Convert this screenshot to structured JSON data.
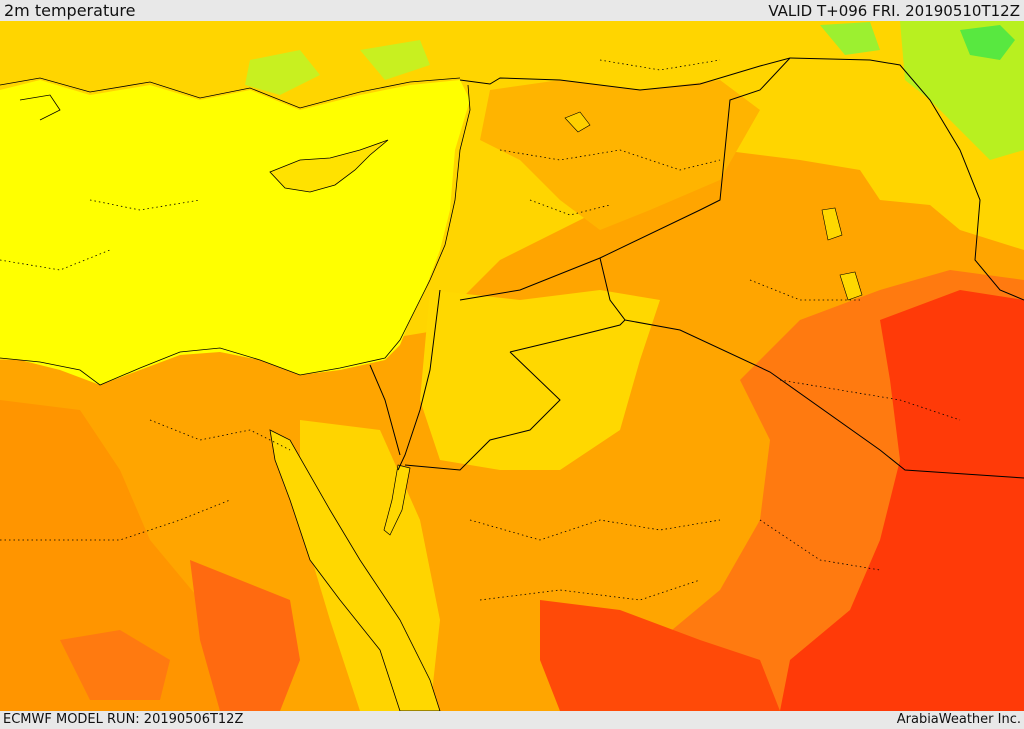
{
  "header": {
    "title": "2m temperature",
    "valid": "VALID T+096 FRI. 20190510T12Z"
  },
  "footer": {
    "model_run": "ECMWF MODEL RUN: 20190506T12Z",
    "credit": "ArabiaWeather Inc."
  },
  "palette": {
    "green": "#38e038",
    "green_light": "#a8ff28",
    "yellow_green": "#d8f018",
    "yellow": "#ffff00",
    "gold": "#ffd800",
    "orange_light": "#ffb000",
    "orange": "#ff9a00",
    "orange_red": "#ff6a10",
    "red": "#ff3008",
    "cyan": "#20e8a0"
  }
}
